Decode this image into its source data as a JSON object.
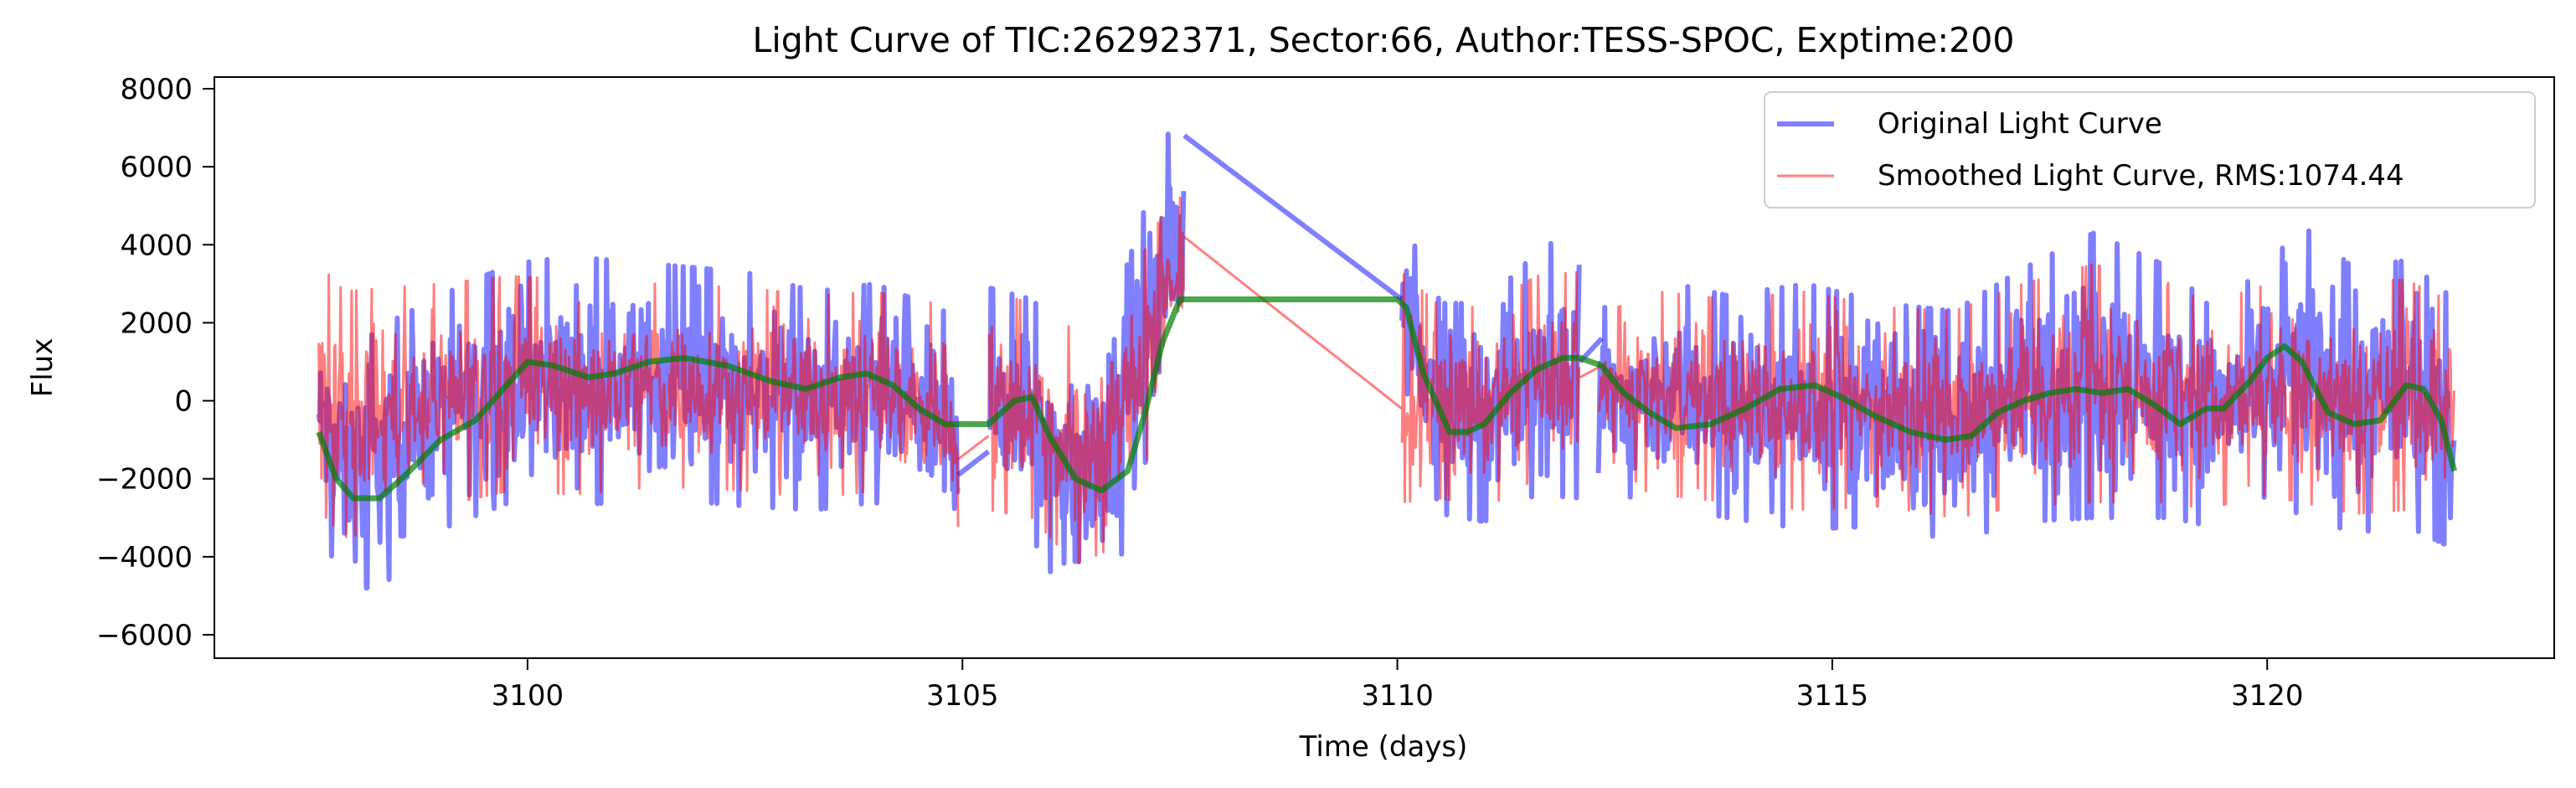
{
  "chart_data": {
    "type": "line",
    "title": "Light Curve of TIC:26292371, Sector:66, Author:TESS-SPOC, Exptime:200",
    "xlabel": "Time (days)",
    "ylabel": "Flux",
    "xlim": [
      3096.4,
      3123.3
    ],
    "ylim": [
      -6600,
      8300
    ],
    "xticks": [
      3100,
      3105,
      3110,
      3115,
      3120
    ],
    "xtick_labels": [
      "3100",
      "3105",
      "3110",
      "3115",
      "3120"
    ],
    "yticks": [
      -6000,
      -4000,
      -2000,
      0,
      2000,
      4000,
      6000,
      8000
    ],
    "ytick_labels": [
      "−6000",
      "−4000",
      "−2000",
      "0",
      "2000",
      "4000",
      "6000",
      "8000"
    ],
    "grid": false,
    "legend_position": "upper right",
    "series": [
      {
        "name": "Original Light Curve",
        "color": "#0000ff",
        "style": "noisy",
        "envelope": {
          "x": [
            3097.6,
            3097.9,
            3098.4,
            3099.0,
            3099.8,
            3100.5,
            3101.5,
            3102.5,
            3103.3,
            3104.0,
            3104.9,
            3105.3,
            3105.8,
            3106.3,
            3106.7,
            3107.0,
            3107.3,
            3107.55,
            3110.05,
            3110.5,
            3111.0,
            3111.6,
            3112.1,
            3112.3,
            3113.0,
            3113.8,
            3114.7,
            3115.6,
            3116.4,
            3117.2,
            3118.0,
            3118.9,
            3119.3,
            3119.9,
            3120.4,
            3121.0,
            3121.6,
            3122.15
          ],
          "low": [
            -3000,
            -5000,
            -4600,
            -3300,
            -2600,
            -2700,
            -2500,
            -2700,
            -2800,
            -2600,
            -3800,
            -3200,
            -3500,
            -5600,
            -4800,
            -2800,
            -300,
            1500,
            700,
            -2900,
            -3100,
            -2400,
            -2500,
            -2200,
            -2700,
            -3000,
            -3300,
            -3200,
            -3600,
            -3100,
            -3000,
            -3000,
            -3200,
            -2700,
            -2900,
            -3400,
            -3200,
            -3800
          ],
          "high": [
            2000,
            1200,
            2000,
            2700,
            3500,
            3700,
            3500,
            3300,
            2800,
            3000,
            2200,
            2900,
            2600,
            1400,
            2200,
            4200,
            6500,
            7800,
            4700,
            2500,
            2500,
            3800,
            4500,
            2300,
            3100,
            2700,
            3000,
            2500,
            2300,
            3400,
            4300,
            3400,
            2500,
            3200,
            4500,
            3400,
            3600,
            2600
          ]
        },
        "connectors": [
          {
            "x": [
              3104.95,
              3105.3
            ],
            "y": [
              -1900,
              -1300
            ]
          },
          {
            "x": [
              3107.55,
              3110.05
            ],
            "y": [
              6800,
              2600
            ]
          },
          {
            "x": [
              3112.1,
              3112.35
            ],
            "y": [
              1000,
              1600
            ]
          }
        ]
      },
      {
        "name": "Smoothed Light Curve, RMS:1074.44",
        "color": "#ff0000",
        "style": "noisy",
        "envelope": {
          "x": [
            3097.6,
            3097.9,
            3098.4,
            3099.0,
            3099.8,
            3100.5,
            3101.5,
            3102.5,
            3103.3,
            3104.0,
            3104.9,
            3105.3,
            3105.8,
            3106.3,
            3106.7,
            3107.0,
            3107.3,
            3107.55,
            3110.05,
            3110.5,
            3111.0,
            3111.6,
            3112.1,
            3112.3,
            3113.0,
            3113.8,
            3114.7,
            3115.6,
            3116.4,
            3117.2,
            3118.0,
            3118.9,
            3119.3,
            3119.9,
            3120.4,
            3121.0,
            3121.6,
            3122.15
          ],
          "low": [
            -2800,
            -3500,
            -3300,
            -2700,
            -2300,
            -2400,
            -2200,
            -2300,
            -2500,
            -2300,
            -3300,
            -2800,
            -3000,
            -4200,
            -3800,
            -2300,
            -400,
            1000,
            -2600,
            -2500,
            -2700,
            -2200,
            -2300,
            -2000,
            -2400,
            -2600,
            -2800,
            -2700,
            -3000,
            -2700,
            -2600,
            -2600,
            -2800,
            -2400,
            -2600,
            -2900,
            -2800,
            -3100
          ],
          "high": [
            3500,
            2800,
            2900,
            3000,
            3200,
            3100,
            3000,
            2900,
            2700,
            2800,
            2400,
            2800,
            2500,
            1800,
            2100,
            3400,
            4800,
            5300,
            3300,
            2400,
            2400,
            3200,
            3300,
            2200,
            2800,
            2600,
            2800,
            2400,
            2300,
            3000,
            3500,
            3000,
            2500,
            2900,
            3500,
            3100,
            3100,
            2500
          ]
        },
        "connectors": [
          {
            "x": [
              3104.95,
              3105.3
            ],
            "y": [
              -1500,
              -900
            ]
          },
          {
            "x": [
              3107.55,
              3110.05
            ],
            "y": [
              4200,
              -200
            ]
          },
          {
            "x": [
              3112.1,
              3112.35
            ],
            "y": [
              600,
              900
            ]
          }
        ]
      },
      {
        "name": "",
        "color": "#008000",
        "style": "smooth",
        "x": [
          3097.6,
          3097.8,
          3098.0,
          3098.3,
          3098.6,
          3099.0,
          3099.4,
          3099.8,
          3100.0,
          3100.3,
          3100.7,
          3101.0,
          3101.4,
          3101.8,
          3102.3,
          3102.8,
          3103.2,
          3103.6,
          3103.9,
          3104.2,
          3104.5,
          3104.8,
          3104.95,
          3105.3,
          3105.6,
          3105.8,
          3106.0,
          3106.3,
          3106.6,
          3106.9,
          3107.1,
          3107.3,
          3107.5,
          3107.6,
          3110.0,
          3110.1,
          3110.3,
          3110.6,
          3110.8,
          3111.0,
          3111.3,
          3111.6,
          3111.9,
          3112.1,
          3112.35,
          3112.6,
          3112.9,
          3113.2,
          3113.6,
          3114.0,
          3114.4,
          3114.8,
          3115.1,
          3115.5,
          3115.9,
          3116.3,
          3116.6,
          3116.9,
          3117.2,
          3117.5,
          3117.8,
          3118.1,
          3118.4,
          3118.7,
          3119.0,
          3119.3,
          3119.5,
          3119.8,
          3120.0,
          3120.2,
          3120.4,
          3120.7,
          3121.0,
          3121.3,
          3121.6,
          3121.8,
          3122.0,
          3122.15
        ],
        "y": [
          -800,
          -2000,
          -2500,
          -2500,
          -1900,
          -1000,
          -500,
          500,
          1000,
          900,
          600,
          700,
          1000,
          1100,
          900,
          500,
          300,
          600,
          700,
          400,
          -200,
          -600,
          -600,
          -600,
          0,
          100,
          -900,
          -2000,
          -2300,
          -1800,
          -300,
          1500,
          2600,
          2600,
          2600,
          2400,
          700,
          -800,
          -800,
          -600,
          200,
          800,
          1100,
          1100,
          900,
          200,
          -300,
          -700,
          -600,
          -200,
          300,
          400,
          100,
          -400,
          -800,
          -1000,
          -900,
          -300,
          0,
          200,
          300,
          200,
          300,
          -100,
          -600,
          -200,
          -200,
          500,
          1100,
          1400,
          1000,
          -300,
          -600,
          -500,
          400,
          300,
          -500,
          -1800
        ]
      }
    ]
  }
}
